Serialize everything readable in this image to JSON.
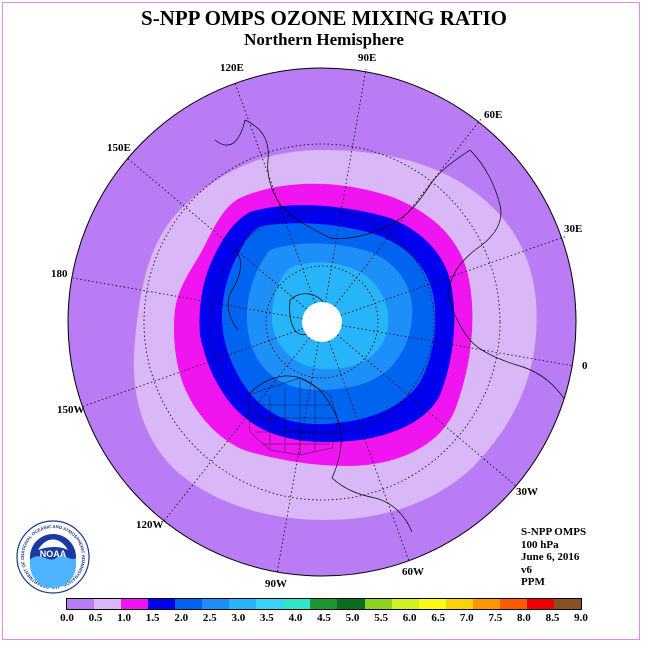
{
  "title": "S-NPP OMPS OZONE MIXING RATIO",
  "subtitle": "Northern Hemisphere",
  "longitude_labels": {
    "lon_90e": "90E",
    "lon_60e": "60E",
    "lon_30e": "30E",
    "lon_0": "0",
    "lon_30w": "30W",
    "lon_60w": "60W",
    "lon_90w": "90W",
    "lon_120w": "120W",
    "lon_150w": "150W",
    "lon_180": "180",
    "lon_150e": "150E",
    "lon_120e": "120E"
  },
  "info": {
    "instrument": "S-NPP OMPS",
    "pressure": "100 hPa",
    "date": "June 6, 2016",
    "version": "v6",
    "units": "PPM"
  },
  "logo": {
    "text": "NOAA",
    "ring_text": "NATIONAL OCEANIC AND ATMOSPHERIC ADMINISTRATION · U.S. DEPARTMENT OF COMMERCE"
  },
  "colorbar": {
    "ticks": [
      "0.0",
      "0.5",
      "1.0",
      "1.5",
      "2.0",
      "2.5",
      "3.0",
      "3.5",
      "4.0",
      "4.5",
      "5.0",
      "5.5",
      "6.0",
      "6.5",
      "7.0",
      "7.5",
      "8.0",
      "8.5",
      "9.0"
    ],
    "colors": [
      "#b97cf4",
      "#dab8f7",
      "#f014f0",
      "#0000ee",
      "#0064f0",
      "#1e8ff8",
      "#28b4f8",
      "#3cd2fa",
      "#2fe6c8",
      "#1e9632",
      "#0a6e1e",
      "#8cd21e",
      "#d2f01e",
      "#fafa14",
      "#fad20a",
      "#fa9600",
      "#fa5a00",
      "#f00000",
      "#8c5028"
    ]
  },
  "map": {
    "projection": "north polar stereographic",
    "field_levels_ppm": [
      "0.0-0.5",
      "0.5-1.0",
      "1.0-1.5",
      "1.5-2.0",
      "2.0-2.5",
      "2.5-3.0"
    ],
    "missing_data_color": "#ffffff"
  }
}
